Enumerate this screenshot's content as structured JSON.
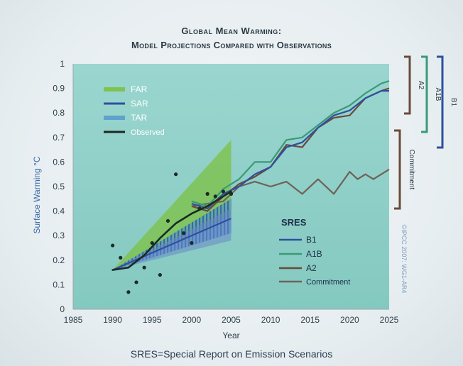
{
  "title_line1": "Global Mean Warming:",
  "title_line2": "Model Projections Compared with Observations",
  "footnote": "SRES=Special Report on Emission Scenarios",
  "credit": "©IPCC 2007: WG1-AR4",
  "colors": {
    "far": "#7cc043",
    "sar": "#2f4f9f",
    "tar": "#4f8fd0",
    "observed": "#1b2a24",
    "b1": "#2f4f9f",
    "a1b": "#3a9a78",
    "a2": "#6b4a3c",
    "commitment": "#6e6258",
    "plot_bg": "#8fd0c8"
  },
  "chart_data": {
    "type": "line",
    "title": "Global Mean Warming: Model Projections Compared with Observations",
    "xlabel": "Year",
    "ylabel": "Surface Warming °C",
    "xlim": [
      1985,
      2025
    ],
    "ylim": [
      0,
      1
    ],
    "x_ticks": [
      "1985",
      "1990",
      "1995",
      "2000",
      "2005",
      "2010",
      "2015",
      "2020",
      "2025"
    ],
    "y_ticks": [
      "0",
      "0.1",
      "0.2",
      "0.3",
      "0.4",
      "0.5",
      "0.6",
      "0.7",
      "0.8",
      "0.9",
      "1"
    ],
    "legend_top": [
      "FAR",
      "SAR",
      "TAR",
      "Observed"
    ],
    "legend_sres_title": "SRES",
    "legend_sres": [
      "B1",
      "A1B",
      "A2",
      "Commitment"
    ],
    "bracket_labels": [
      "A2",
      "A1B",
      "B1",
      "Commitment"
    ],
    "bands": [
      {
        "name": "FAR",
        "x": [
          1990,
          2005
        ],
        "lower": [
          0.16,
          0.38
        ],
        "upper": [
          0.16,
          0.69
        ]
      },
      {
        "name": "SAR",
        "x": [
          1990,
          2005
        ],
        "lower": [
          0.16,
          0.28
        ],
        "upper": [
          0.16,
          0.41
        ]
      },
      {
        "name": "TAR",
        "x": [
          1990,
          2005
        ],
        "lower": [
          0.16,
          0.31
        ],
        "upper": [
          0.16,
          0.45
        ]
      }
    ],
    "series": [
      {
        "name": "SAR",
        "x": [
          1990,
          2005
        ],
        "y": [
          0.16,
          0.37
        ]
      },
      {
        "name": "Observed",
        "x": [
          1990,
          1992,
          1994,
          1996,
          1998,
          2000,
          2002,
          2004,
          2005
        ],
        "y": [
          0.16,
          0.17,
          0.22,
          0.29,
          0.35,
          0.39,
          0.42,
          0.46,
          0.48
        ]
      },
      {
        "name": "Commitment",
        "x": [
          2000,
          2002,
          2004,
          2006,
          2008,
          2010,
          2012,
          2014,
          2016,
          2018,
          2020,
          2021,
          2022,
          2023,
          2024,
          2025
        ],
        "y": [
          0.42,
          0.43,
          0.44,
          0.5,
          0.52,
          0.5,
          0.52,
          0.47,
          0.53,
          0.47,
          0.56,
          0.53,
          0.55,
          0.53,
          0.55,
          0.57
        ]
      },
      {
        "name": "B1",
        "x": [
          2000,
          2002,
          2004,
          2006,
          2008,
          2010,
          2012,
          2014,
          2016,
          2018,
          2020,
          2022,
          2024,
          2025
        ],
        "y": [
          0.43,
          0.41,
          0.47,
          0.5,
          0.55,
          0.58,
          0.66,
          0.68,
          0.74,
          0.79,
          0.81,
          0.86,
          0.89,
          0.89
        ]
      },
      {
        "name": "A1B",
        "x": [
          2000,
          2002,
          2004,
          2006,
          2008,
          2010,
          2012,
          2014,
          2016,
          2018,
          2020,
          2022,
          2024,
          2025
        ],
        "y": [
          0.44,
          0.42,
          0.49,
          0.53,
          0.6,
          0.6,
          0.69,
          0.7,
          0.75,
          0.8,
          0.83,
          0.88,
          0.92,
          0.93
        ]
      },
      {
        "name": "A2",
        "x": [
          2000,
          2002,
          2004,
          2006,
          2008,
          2010,
          2012,
          2014,
          2016,
          2018,
          2020,
          2022,
          2024,
          2025
        ],
        "y": [
          0.42,
          0.4,
          0.46,
          0.51,
          0.54,
          0.58,
          0.67,
          0.66,
          0.74,
          0.78,
          0.79,
          0.86,
          0.89,
          0.9
        ]
      }
    ],
    "observations": {
      "x": [
        1990,
        1991,
        1992,
        1993,
        1994,
        1995,
        1996,
        1997,
        1998,
        1999,
        2000,
        2001,
        2002,
        2003,
        2004,
        2005
      ],
      "y": [
        0.26,
        0.21,
        0.07,
        0.11,
        0.17,
        0.27,
        0.14,
        0.36,
        0.55,
        0.31,
        0.27,
        0.41,
        0.47,
        0.46,
        0.48,
        0.47
      ]
    },
    "grid": false
  }
}
